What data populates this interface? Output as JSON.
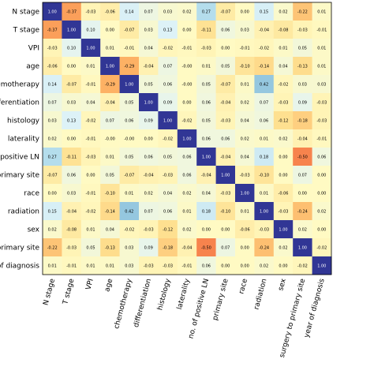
{
  "chart_data": {
    "type": "heatmap",
    "title": "",
    "xlabel": "",
    "ylabel": "",
    "row_labels": [
      "N stage",
      "T stage",
      "VPI",
      "age",
      "chemotherapy",
      "differentiation",
      "histology",
      "laterality",
      "no. of positive LN",
      "primary site",
      "race",
      "radiation",
      "sex",
      "surgery to primary site",
      "year of diagnosis"
    ],
    "column_labels": [
      "N stage",
      "T stage",
      "VPI",
      "age",
      "chemotherapy",
      "differentiation",
      "histology",
      "laterality",
      "no. of positive LN",
      "primary site",
      "race",
      "radiation",
      "sex",
      "surgery to primary site",
      "year of diagnosis"
    ],
    "row_labels_display": [
      "N stage",
      "T stage",
      "VPI",
      "age",
      "hemotherapy",
      "differentiation",
      "histology",
      "laterality",
      "o of positive LN",
      "primary site",
      "race",
      "radiation",
      "sex",
      "o primary site",
      "ar of diagnosis"
    ],
    "matrix": [
      [
        "1.00",
        "-0.37",
        "-0.03",
        "-0.06",
        "0.14",
        "0.07",
        "0.03",
        "0.02",
        "0.27",
        "-0.07",
        "0.00",
        "0.15",
        "0.02",
        "-0.22",
        "0.01"
      ],
      [
        "-0.37",
        "1.00",
        "0.10",
        "0.00",
        "-0.07",
        "0.03",
        "0.13",
        "0.00",
        "-0.11",
        "0.06",
        "0.03",
        "-0.04",
        "-0.08",
        "-0.03",
        "-0.01"
      ],
      [
        "-0.03",
        "0.10",
        "1.00",
        "0.01",
        "-0.01",
        "0.04",
        "-0.02",
        "-0.01",
        "-0.03",
        "0.00",
        "-0.01",
        "-0.02",
        "0.01",
        "0.05",
        "0.01"
      ],
      [
        "-0.06",
        "0.00",
        "0.01",
        "1.00",
        "-0.29",
        "-0.04",
        "0.07",
        "-0.00",
        "0.01",
        "0.05",
        "-0.10",
        "-0.14",
        "0.04",
        "-0.13",
        "0.01"
      ],
      [
        "0.14",
        "-0.07",
        "-0.01",
        "-0.29",
        "1.00",
        "0.05",
        "0.06",
        "-0.00",
        "0.05",
        "-0.07",
        "0.01",
        "0.42",
        "-0.02",
        "0.03",
        "0.03"
      ],
      [
        "0.07",
        "0.03",
        "0.04",
        "-0.04",
        "0.05",
        "1.00",
        "0.09",
        "0.00",
        "0.06",
        "-0.04",
        "0.02",
        "0.07",
        "-0.03",
        "0.09",
        "-0.03"
      ],
      [
        "0.03",
        "0.13",
        "-0.02",
        "0.07",
        "0.06",
        "0.09",
        "1.00",
        "-0.02",
        "0.05",
        "-0.03",
        "0.04",
        "0.06",
        "-0.12",
        "-0.18",
        "-0.03"
      ],
      [
        "0.02",
        "0.00",
        "-0.01",
        "-0.00",
        "-0.00",
        "0.00",
        "-0.02",
        "1.00",
        "0.06",
        "0.06",
        "0.02",
        "0.01",
        "0.02",
        "-0.04",
        "-0.01"
      ],
      [
        "0.27",
        "-0.11",
        "-0.03",
        "0.01",
        "0.05",
        "0.06",
        "0.05",
        "0.06",
        "1.00",
        "-0.04",
        "0.04",
        "0.18",
        "0.00",
        "-0.50",
        "0.06"
      ],
      [
        "-0.07",
        "0.06",
        "0.00",
        "0.05",
        "-0.07",
        "-0.04",
        "-0.03",
        "0.06",
        "-0.04",
        "1.00",
        "-0.03",
        "-0.10",
        "0.00",
        "0.07",
        "0.00"
      ],
      [
        "0.00",
        "0.03",
        "-0.01",
        "-0.10",
        "0.01",
        "0.02",
        "0.04",
        "0.02",
        "0.04",
        "-0.03",
        "1.00",
        "0.01",
        "-0.06",
        "0.00",
        "0.00"
      ],
      [
        "0.15",
        "-0.04",
        "-0.02",
        "-0.14",
        "0.42",
        "0.07",
        "0.06",
        "0.01",
        "0.18",
        "-0.10",
        "0.01",
        "1.00",
        "-0.03",
        "-0.24",
        "0.02"
      ],
      [
        "0.02",
        "-0.08",
        "0.01",
        "0.04",
        "-0.02",
        "-0.03",
        "-0.12",
        "0.02",
        "0.00",
        "0.00",
        "-0.06",
        "-0.03",
        "1.00",
        "0.02",
        "0.00"
      ],
      [
        "-0.22",
        "-0.03",
        "0.05",
        "-0.13",
        "0.03",
        "0.09",
        "-0.18",
        "-0.04",
        "-0.50",
        "0.07",
        "0.00",
        "-0.24",
        "0.02",
        "1.00",
        "-0.02"
      ],
      [
        "0.01",
        "-0.01",
        "0.01",
        "0.01",
        "0.03",
        "-0.03",
        "-0.03",
        "-0.01",
        "0.06",
        "0.00",
        "0.00",
        "0.02",
        "0.00",
        "-0.02",
        "1.00"
      ]
    ],
    "colormap": "RdYlBu_r",
    "value_range": [
      -1,
      1
    ],
    "grid": false,
    "legend": "none"
  }
}
